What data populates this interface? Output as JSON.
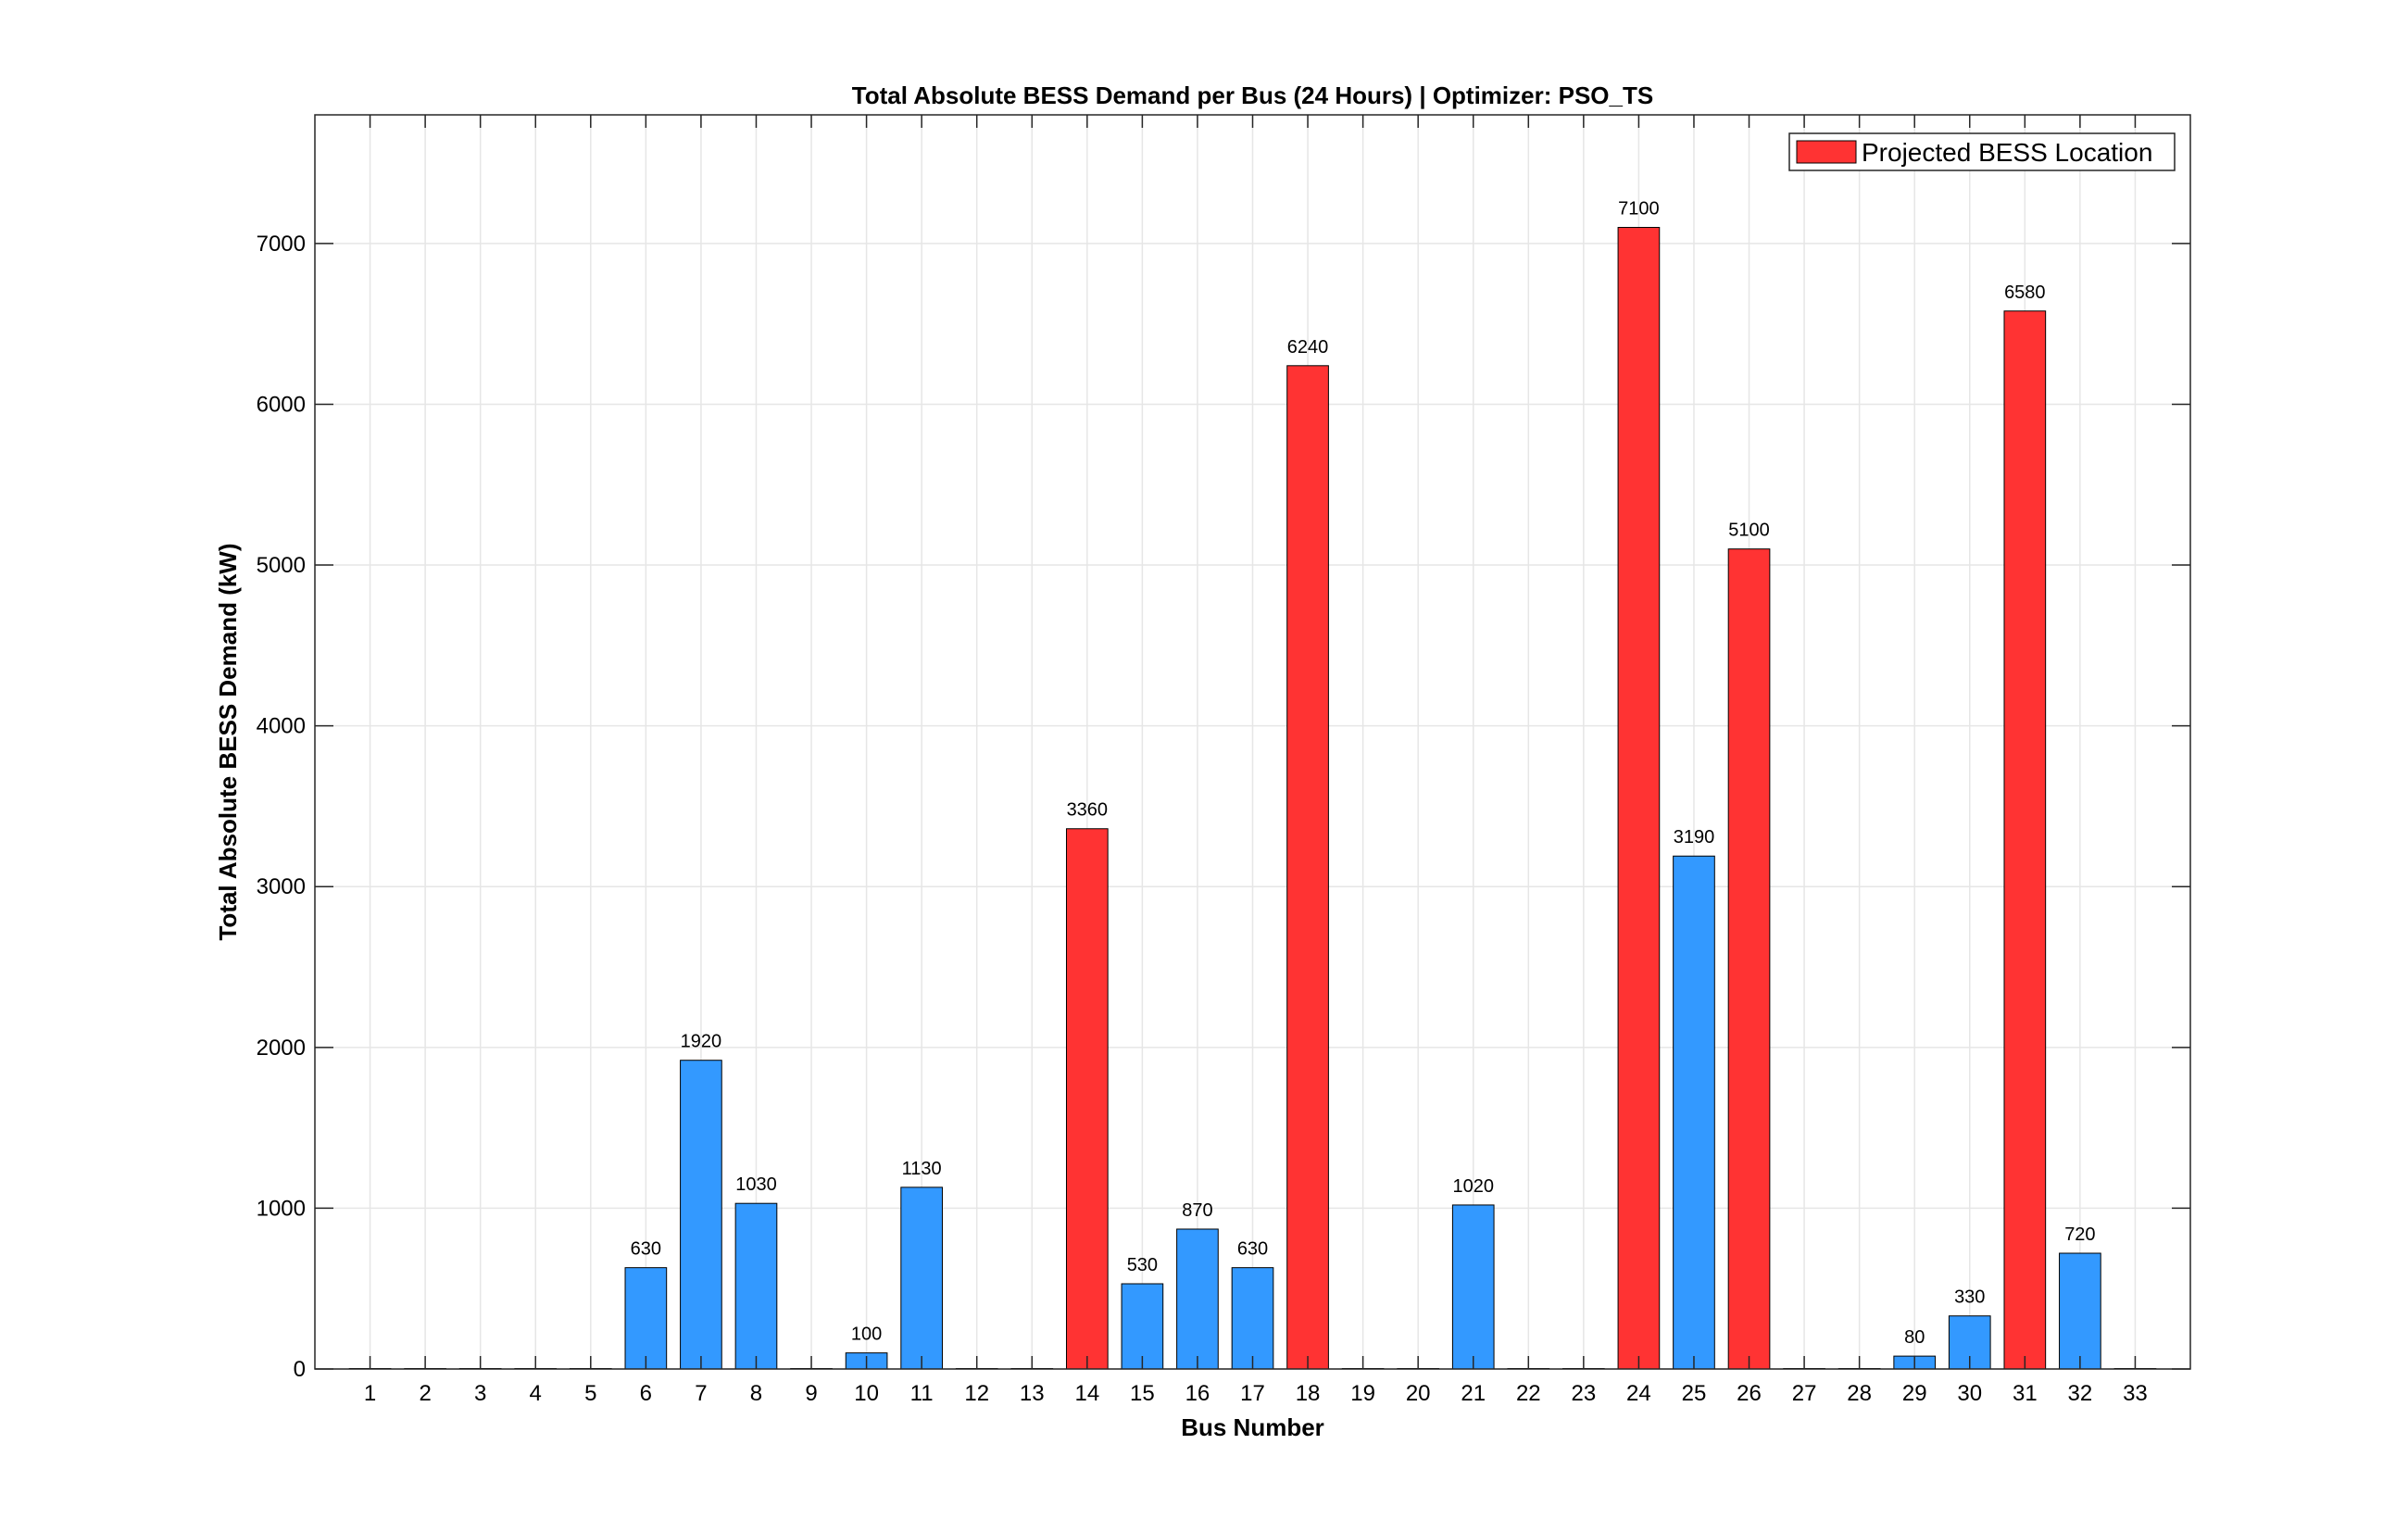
{
  "chart_data": {
    "type": "bar",
    "title": "Total Absolute BESS Demand per Bus (24 Hours) | Optimizer: PSO_TS",
    "xlabel": "Bus Number",
    "ylabel": "Total Absolute BESS Demand (kW)",
    "ylim": [
      0,
      7800
    ],
    "yticks": [
      0,
      1000,
      2000,
      3000,
      4000,
      5000,
      6000,
      7000
    ],
    "grid": true,
    "legend_position": "top-right",
    "categories": [
      "1",
      "2",
      "3",
      "4",
      "5",
      "6",
      "7",
      "8",
      "9",
      "10",
      "11",
      "12",
      "13",
      "14",
      "15",
      "16",
      "17",
      "18",
      "19",
      "20",
      "21",
      "22",
      "23",
      "24",
      "25",
      "26",
      "27",
      "28",
      "29",
      "30",
      "31",
      "32",
      "33"
    ],
    "values": [
      0,
      0,
      0,
      0,
      0,
      630,
      1920,
      1030,
      0,
      100,
      1130,
      0,
      0,
      3360,
      530,
      870,
      630,
      6240,
      0,
      0,
      1020,
      0,
      0,
      7100,
      3190,
      5100,
      0,
      0,
      80,
      330,
      6580,
      720,
      0
    ],
    "data_labels": [
      "",
      "",
      "",
      "",
      "",
      "630",
      "1920",
      "1030",
      "",
      "100",
      "1130",
      "",
      "",
      "3360",
      "530",
      "870",
      "630",
      "6240",
      "",
      "",
      "1020",
      "",
      "",
      "7100",
      "3190",
      "5100",
      "",
      "",
      "80",
      "330",
      "6580",
      "720",
      ""
    ],
    "projected_bess_buses": [
      "14",
      "18",
      "24",
      "26",
      "31"
    ],
    "colors": {
      "default_bar": "#3399ff",
      "projected_bar": "#ff3333",
      "bar_edge": "#000000",
      "grid": "#e6e6e6",
      "axis": "#262626"
    },
    "legend": [
      {
        "label": "Projected BESS Location",
        "color": "#ff3333"
      }
    ]
  }
}
